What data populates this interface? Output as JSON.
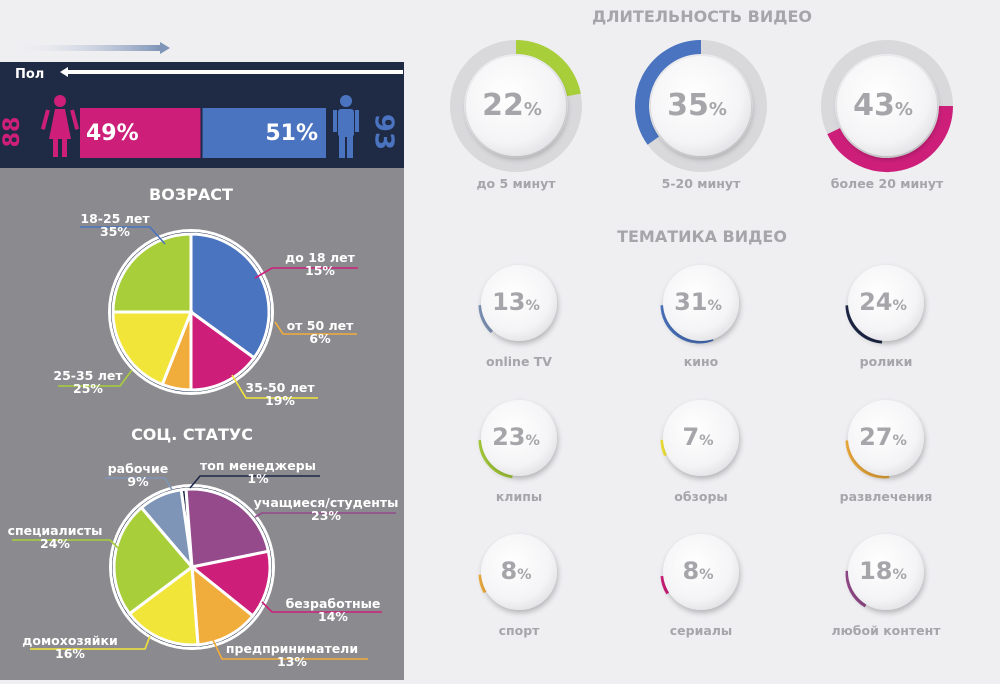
{
  "colors": {
    "navy": "#1f2a44",
    "left_panel": "#8b8b8f",
    "page": "#efeff2",
    "female": "#cd1f7a",
    "male": "#4a74c0",
    "lime": "#a8cf3a",
    "yellow": "#f2e53a",
    "orange": "#f1ad3c",
    "purple": "#954a8c",
    "gray_blue": "#7f95b8",
    "dark_navy": "#1d2747",
    "ring_bg": "#d8d8da",
    "text_gray": "#a6a6aa"
  },
  "gender": {
    "title": "Пол",
    "female_index": "88",
    "male_index": "93",
    "female_pct": "49%",
    "male_pct": "51%",
    "female_value": 49,
    "male_value": 51
  },
  "chart_data": [
    {
      "type": "pie",
      "title": "ВОЗРАСТ",
      "slices": [
        {
          "label": "18-25 лет",
          "pct_text": "35%",
          "value": 35,
          "color": "#4a74c0"
        },
        {
          "label": "до 18 лет",
          "pct_text": "15%",
          "value": 15,
          "color": "#cd1f7a"
        },
        {
          "label": "от 50 лет",
          "pct_text": "6%",
          "value": 6,
          "color": "#f1ad3c"
        },
        {
          "label": "35-50 лет",
          "pct_text": "19%",
          "value": 19,
          "color": "#f2e53a"
        },
        {
          "label": "25-35 лет",
          "pct_text": "25%",
          "value": 25,
          "color": "#a8cf3a"
        }
      ]
    },
    {
      "type": "pie",
      "title": "СОЦ. СТАТУС",
      "slices": [
        {
          "label": "топ менеджеры",
          "pct_text": "1%",
          "value": 1,
          "color": "#1d2747"
        },
        {
          "label": "учащиеся/студенты",
          "pct_text": "23%",
          "value": 23,
          "color": "#954a8c"
        },
        {
          "label": "безработные",
          "pct_text": "14%",
          "value": 14,
          "color": "#cd1f7a"
        },
        {
          "label": "предприниматели",
          "pct_text": "13%",
          "value": 13,
          "color": "#f1ad3c"
        },
        {
          "label": "домохозяйки",
          "pct_text": "16%",
          "value": 16,
          "color": "#f2e53a"
        },
        {
          "label": "специалисты",
          "pct_text": "24%",
          "value": 24,
          "color": "#a8cf3a"
        },
        {
          "label": "рабочие",
          "pct_text": "9%",
          "value": 9,
          "color": "#7f95b8"
        }
      ]
    },
    {
      "type": "donut",
      "title": "ДЛИТЕЛЬНОСТЬ ВИДЕО",
      "items": [
        {
          "label": "до 5 минут",
          "num": "22",
          "unit": "%",
          "value": 22,
          "color": "#a8cf3a",
          "start_deg": 0
        },
        {
          "label": "5-20 минут",
          "num": "35",
          "unit": "%",
          "value": 35,
          "color": "#4a74c0",
          "start_deg": 234
        },
        {
          "label": "более 20 минут",
          "num": "43",
          "unit": "%",
          "value": 43,
          "color": "#cd1f7a",
          "start_deg": 90
        }
      ]
    },
    {
      "type": "donut",
      "title": "ТЕМАТИКА ВИДЕО",
      "items": [
        {
          "label": "online TV",
          "num": "13",
          "unit": "%",
          "value": 13,
          "color": "#7f95b8",
          "start_deg": 223
        },
        {
          "label": "кино",
          "num": "31",
          "unit": "%",
          "value": 31,
          "color": "#4a74c0",
          "start_deg": 158
        },
        {
          "label": "ролики",
          "num": "24",
          "unit": "%",
          "value": 24,
          "color": "#1d2747",
          "start_deg": 183
        },
        {
          "label": "клипы",
          "num": "23",
          "unit": "%",
          "value": 23,
          "color": "#a8cf3a",
          "start_deg": 187
        },
        {
          "label": "обзоры",
          "num": "7",
          "unit": "%",
          "value": 7,
          "color": "#f2e53a",
          "start_deg": 245
        },
        {
          "label": "развлечения",
          "num": "27",
          "unit": "%",
          "value": 27,
          "color": "#f1ad3c",
          "start_deg": 172
        },
        {
          "label": "спорт",
          "num": "8",
          "unit": "%",
          "value": 8,
          "color": "#f1ad3c",
          "start_deg": 240
        },
        {
          "label": "сериалы",
          "num": "8",
          "unit": "%",
          "value": 8,
          "color": "#cd1f7a",
          "start_deg": 238
        },
        {
          "label": "любой контент",
          "num": "18",
          "unit": "%",
          "value": 18,
          "color": "#954a8c",
          "start_deg": 210
        }
      ]
    }
  ]
}
